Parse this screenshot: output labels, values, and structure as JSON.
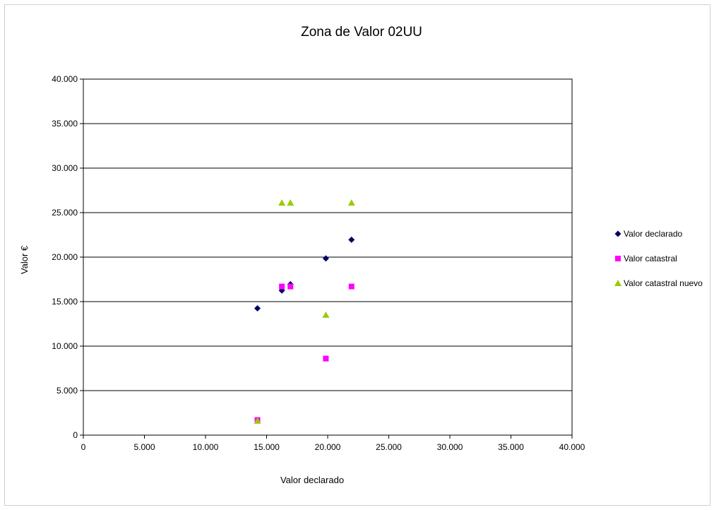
{
  "chart_data": {
    "type": "scatter",
    "title": "Zona de Valor 02UU",
    "xlabel": "Valor declarado",
    "ylabel": "Valor €",
    "xlim": [
      0,
      40000
    ],
    "ylim": [
      0,
      40000
    ],
    "x_ticks": [
      "0",
      "5.000",
      "10.000",
      "15.000",
      "20.000",
      "25.000",
      "30.000",
      "35.000",
      "40.000"
    ],
    "y_ticks": [
      "0",
      "5.000",
      "10.000",
      "15.000",
      "20.000",
      "25.000",
      "30.000",
      "35.000",
      "40.000"
    ],
    "grid": "horizontal",
    "legend_position": "right",
    "series": [
      {
        "name": "Valor declarado",
        "marker": "diamond",
        "color": "#000066",
        "points": [
          [
            14250,
            14250
          ],
          [
            16250,
            16250
          ],
          [
            16950,
            16950
          ],
          [
            19850,
            19850
          ],
          [
            21950,
            21950
          ]
        ]
      },
      {
        "name": "Valor catastral",
        "marker": "square",
        "color": "#ff00ff",
        "points": [
          [
            14250,
            1700
          ],
          [
            16250,
            16700
          ],
          [
            16950,
            16700
          ],
          [
            19850,
            8600
          ],
          [
            21950,
            16700
          ]
        ]
      },
      {
        "name": "Valor catastral nuevo",
        "marker": "triangle",
        "color": "#99cc00",
        "points": [
          [
            14250,
            1600
          ],
          [
            16250,
            26100
          ],
          [
            16950,
            26100
          ],
          [
            19850,
            13500
          ],
          [
            21950,
            26100
          ]
        ]
      }
    ]
  }
}
